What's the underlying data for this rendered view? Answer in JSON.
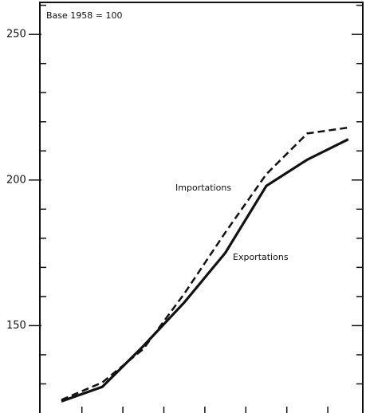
{
  "chart_data": {
    "type": "line",
    "annotations": [
      "Base 1958 = 100",
      "Importations",
      "Exportations"
    ],
    "categories": [
      null,
      null,
      null,
      null,
      null,
      null,
      null,
      null
    ],
    "series": [
      {
        "name": "Exportations",
        "color": "#111111",
        "dash": "solid",
        "values": [
          124,
          129,
          143,
          158,
          175,
          198,
          207,
          214
        ]
      },
      {
        "name": "Importations",
        "color": "#111111",
        "dash": "dashed",
        "values": [
          124.5,
          130.5,
          142,
          161,
          182,
          202,
          216,
          218
        ]
      }
    ],
    "ylim": [
      120,
      261
    ],
    "yticks": [
      150,
      200,
      250
    ],
    "minor_yticks": [
      130,
      140,
      160,
      170,
      180,
      190,
      210,
      220,
      230,
      240,
      260
    ]
  }
}
